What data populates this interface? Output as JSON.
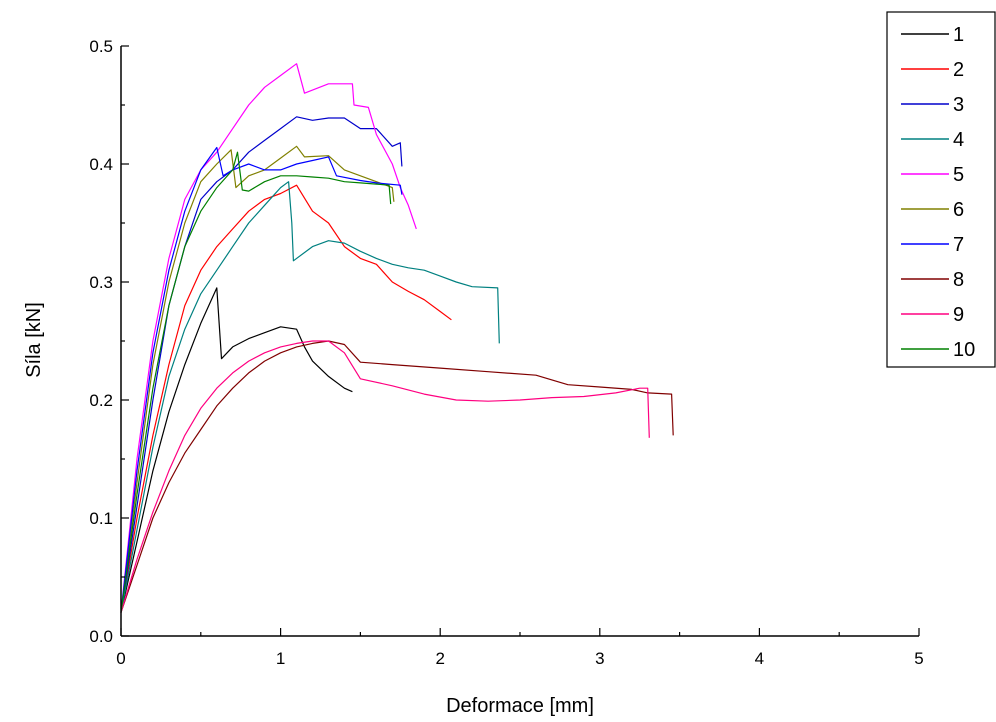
{
  "chart_data": {
    "type": "line",
    "xlabel": "Deformace [mm]",
    "ylabel": "Síla [kN]",
    "xlim": [
      0,
      5
    ],
    "ylim": [
      0,
      0.5
    ],
    "xticks": [
      0,
      1,
      2,
      3,
      4,
      5
    ],
    "xtick_labels": [
      "0",
      "1",
      "2",
      "3",
      "4",
      "5"
    ],
    "yticks": [
      0,
      0.1,
      0.2,
      0.3,
      0.4,
      0.5
    ],
    "ytick_labels": [
      "0.0",
      "0.1",
      "0.2",
      "0.3",
      "0.4",
      "0.5"
    ],
    "grid": false,
    "legend_position": "top-right",
    "series": [
      {
        "name": "1",
        "color": "#000000",
        "points": [
          [
            0,
            0.02
          ],
          [
            0.1,
            0.08
          ],
          [
            0.2,
            0.14
          ],
          [
            0.3,
            0.19
          ],
          [
            0.4,
            0.23
          ],
          [
            0.5,
            0.265
          ],
          [
            0.6,
            0.295
          ],
          [
            0.63,
            0.235
          ],
          [
            0.7,
            0.245
          ],
          [
            0.8,
            0.252
          ],
          [
            0.9,
            0.257
          ],
          [
            1.0,
            0.262
          ],
          [
            1.1,
            0.26
          ],
          [
            1.15,
            0.245
          ],
          [
            1.2,
            0.233
          ],
          [
            1.3,
            0.22
          ],
          [
            1.4,
            0.21
          ],
          [
            1.45,
            0.207
          ]
        ]
      },
      {
        "name": "2",
        "color": "#ff0000",
        "points": [
          [
            0,
            0.02
          ],
          [
            0.1,
            0.1
          ],
          [
            0.2,
            0.17
          ],
          [
            0.3,
            0.23
          ],
          [
            0.4,
            0.28
          ],
          [
            0.5,
            0.31
          ],
          [
            0.6,
            0.33
          ],
          [
            0.7,
            0.345
          ],
          [
            0.8,
            0.36
          ],
          [
            0.9,
            0.37
          ],
          [
            1.0,
            0.375
          ],
          [
            1.1,
            0.382
          ],
          [
            1.2,
            0.36
          ],
          [
            1.3,
            0.35
          ],
          [
            1.4,
            0.33
          ],
          [
            1.5,
            0.32
          ],
          [
            1.6,
            0.315
          ],
          [
            1.7,
            0.3
          ],
          [
            1.8,
            0.292
          ],
          [
            1.9,
            0.285
          ],
          [
            2.0,
            0.275
          ],
          [
            2.07,
            0.268
          ]
        ]
      },
      {
        "name": "3",
        "color": "#0000cc",
        "points": [
          [
            0,
            0.02
          ],
          [
            0.1,
            0.11
          ],
          [
            0.2,
            0.2
          ],
          [
            0.3,
            0.28
          ],
          [
            0.4,
            0.33
          ],
          [
            0.5,
            0.37
          ],
          [
            0.6,
            0.385
          ],
          [
            0.7,
            0.395
          ],
          [
            0.8,
            0.41
          ],
          [
            0.9,
            0.42
          ],
          [
            1.0,
            0.43
          ],
          [
            1.1,
            0.44
          ],
          [
            1.2,
            0.437
          ],
          [
            1.3,
            0.439
          ],
          [
            1.4,
            0.439
          ],
          [
            1.5,
            0.43
          ],
          [
            1.6,
            0.43
          ],
          [
            1.7,
            0.415
          ],
          [
            1.75,
            0.418
          ],
          [
            1.76,
            0.398
          ]
        ]
      },
      {
        "name": "4",
        "color": "#008080",
        "points": [
          [
            0,
            0.02
          ],
          [
            0.1,
            0.09
          ],
          [
            0.2,
            0.16
          ],
          [
            0.3,
            0.22
          ],
          [
            0.4,
            0.26
          ],
          [
            0.5,
            0.29
          ],
          [
            0.6,
            0.31
          ],
          [
            0.7,
            0.33
          ],
          [
            0.8,
            0.35
          ],
          [
            0.9,
            0.365
          ],
          [
            1.0,
            0.38
          ],
          [
            1.05,
            0.385
          ],
          [
            1.07,
            0.35
          ],
          [
            1.08,
            0.318
          ],
          [
            1.2,
            0.33
          ],
          [
            1.3,
            0.335
          ],
          [
            1.4,
            0.333
          ],
          [
            1.5,
            0.326
          ],
          [
            1.6,
            0.32
          ],
          [
            1.7,
            0.315
          ],
          [
            1.8,
            0.312
          ],
          [
            1.9,
            0.31
          ],
          [
            2.0,
            0.305
          ],
          [
            2.1,
            0.3
          ],
          [
            2.2,
            0.296
          ],
          [
            2.36,
            0.295
          ],
          [
            2.37,
            0.248
          ]
        ]
      },
      {
        "name": "5",
        "color": "#ff00ff",
        "points": [
          [
            0,
            0.02
          ],
          [
            0.1,
            0.15
          ],
          [
            0.2,
            0.25
          ],
          [
            0.3,
            0.32
          ],
          [
            0.4,
            0.37
          ],
          [
            0.5,
            0.395
          ],
          [
            0.6,
            0.41
          ],
          [
            0.7,
            0.43
          ],
          [
            0.8,
            0.45
          ],
          [
            0.9,
            0.465
          ],
          [
            1.0,
            0.475
          ],
          [
            1.1,
            0.485
          ],
          [
            1.15,
            0.46
          ],
          [
            1.3,
            0.468
          ],
          [
            1.45,
            0.468
          ],
          [
            1.46,
            0.45
          ],
          [
            1.55,
            0.448
          ],
          [
            1.6,
            0.425
          ],
          [
            1.7,
            0.4
          ],
          [
            1.75,
            0.38
          ],
          [
            1.8,
            0.365
          ],
          [
            1.85,
            0.345
          ]
        ]
      },
      {
        "name": "6",
        "color": "#808000",
        "points": [
          [
            0,
            0.02
          ],
          [
            0.1,
            0.13
          ],
          [
            0.2,
            0.23
          ],
          [
            0.3,
            0.3
          ],
          [
            0.4,
            0.35
          ],
          [
            0.5,
            0.385
          ],
          [
            0.6,
            0.4
          ],
          [
            0.69,
            0.412
          ],
          [
            0.72,
            0.38
          ],
          [
            0.8,
            0.39
          ],
          [
            0.9,
            0.395
          ],
          [
            1.0,
            0.405
          ],
          [
            1.1,
            0.415
          ],
          [
            1.15,
            0.406
          ],
          [
            1.3,
            0.407
          ],
          [
            1.4,
            0.395
          ],
          [
            1.5,
            0.39
          ],
          [
            1.6,
            0.385
          ],
          [
            1.7,
            0.38
          ],
          [
            1.71,
            0.368
          ]
        ]
      },
      {
        "name": "7",
        "color": "#0000ff",
        "points": [
          [
            0,
            0.02
          ],
          [
            0.1,
            0.14
          ],
          [
            0.2,
            0.24
          ],
          [
            0.3,
            0.31
          ],
          [
            0.4,
            0.36
          ],
          [
            0.5,
            0.395
          ],
          [
            0.6,
            0.414
          ],
          [
            0.64,
            0.39
          ],
          [
            0.7,
            0.395
          ],
          [
            0.8,
            0.4
          ],
          [
            0.9,
            0.395
          ],
          [
            1.0,
            0.395
          ],
          [
            1.1,
            0.4
          ],
          [
            1.2,
            0.403
          ],
          [
            1.3,
            0.406
          ],
          [
            1.35,
            0.39
          ],
          [
            1.5,
            0.386
          ],
          [
            1.6,
            0.384
          ],
          [
            1.75,
            0.382
          ],
          [
            1.76,
            0.374
          ]
        ]
      },
      {
        "name": "8",
        "color": "#800000",
        "points": [
          [
            0,
            0.02
          ],
          [
            0.1,
            0.06
          ],
          [
            0.2,
            0.1
          ],
          [
            0.3,
            0.13
          ],
          [
            0.4,
            0.155
          ],
          [
            0.5,
            0.175
          ],
          [
            0.6,
            0.195
          ],
          [
            0.7,
            0.21
          ],
          [
            0.8,
            0.223
          ],
          [
            0.9,
            0.233
          ],
          [
            1.0,
            0.24
          ],
          [
            1.1,
            0.245
          ],
          [
            1.2,
            0.248
          ],
          [
            1.3,
            0.25
          ],
          [
            1.4,
            0.247
          ],
          [
            1.5,
            0.232
          ],
          [
            1.7,
            0.23
          ],
          [
            2.0,
            0.227
          ],
          [
            2.3,
            0.224
          ],
          [
            2.6,
            0.221
          ],
          [
            2.8,
            0.213
          ],
          [
            3.0,
            0.211
          ],
          [
            3.2,
            0.209
          ],
          [
            3.3,
            0.206
          ],
          [
            3.45,
            0.205
          ],
          [
            3.46,
            0.17
          ]
        ]
      },
      {
        "name": "9",
        "color": "#ff0080",
        "points": [
          [
            0,
            0.02
          ],
          [
            0.1,
            0.065
          ],
          [
            0.2,
            0.105
          ],
          [
            0.3,
            0.14
          ],
          [
            0.4,
            0.17
          ],
          [
            0.5,
            0.193
          ],
          [
            0.6,
            0.21
          ],
          [
            0.7,
            0.223
          ],
          [
            0.8,
            0.233
          ],
          [
            0.9,
            0.24
          ],
          [
            1.0,
            0.245
          ],
          [
            1.1,
            0.248
          ],
          [
            1.2,
            0.25
          ],
          [
            1.3,
            0.25
          ],
          [
            1.4,
            0.24
          ],
          [
            1.5,
            0.218
          ],
          [
            1.7,
            0.212
          ],
          [
            1.9,
            0.205
          ],
          [
            2.1,
            0.2
          ],
          [
            2.3,
            0.199
          ],
          [
            2.5,
            0.2
          ],
          [
            2.7,
            0.202
          ],
          [
            2.9,
            0.203
          ],
          [
            3.1,
            0.206
          ],
          [
            3.25,
            0.21
          ],
          [
            3.3,
            0.21
          ],
          [
            3.31,
            0.168
          ]
        ]
      },
      {
        "name": "10",
        "color": "#008000",
        "points": [
          [
            0,
            0.02
          ],
          [
            0.1,
            0.12
          ],
          [
            0.2,
            0.21
          ],
          [
            0.3,
            0.28
          ],
          [
            0.4,
            0.33
          ],
          [
            0.5,
            0.36
          ],
          [
            0.6,
            0.38
          ],
          [
            0.7,
            0.395
          ],
          [
            0.73,
            0.41
          ],
          [
            0.76,
            0.378
          ],
          [
            0.8,
            0.377
          ],
          [
            0.9,
            0.385
          ],
          [
            1.0,
            0.39
          ],
          [
            1.1,
            0.39
          ],
          [
            1.2,
            0.389
          ],
          [
            1.3,
            0.388
          ],
          [
            1.4,
            0.385
          ],
          [
            1.5,
            0.384
          ],
          [
            1.6,
            0.383
          ],
          [
            1.68,
            0.382
          ],
          [
            1.69,
            0.366
          ]
        ]
      }
    ]
  }
}
